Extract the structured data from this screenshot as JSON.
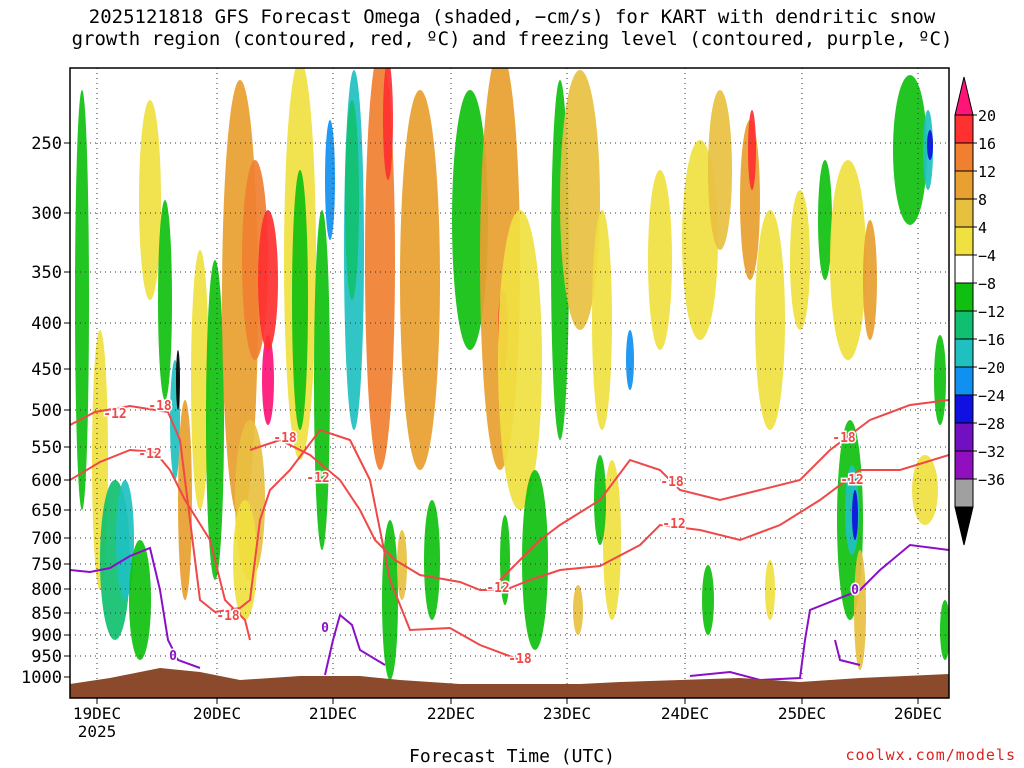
{
  "chart_data": {
    "type": "heatmap",
    "title_line1": "2025121818 GFS Forecast Omega (shaded, −cm/s) for KART with dendritic snow",
    "title_line2": "growth region (contoured, red, ºC) and freezing level (contoured, purple, ºC)",
    "xlabel": "Forecast Time (UTC)",
    "ylabel": "",
    "y_ticks": [
      250,
      300,
      350,
      400,
      450,
      500,
      550,
      600,
      650,
      700,
      750,
      800,
      850,
      900,
      950,
      1000
    ],
    "y_range": [
      200,
      1020
    ],
    "x_ticks": [
      "19DEC",
      "20DEC",
      "21DEC",
      "22DEC",
      "23DEC",
      "24DEC",
      "25DEC",
      "26DEC"
    ],
    "x_year": "2025",
    "colorbar": {
      "labels": [
        "20",
        "16",
        "12",
        "8",
        "4",
        "−4",
        "−8",
        "−12",
        "−16",
        "−20",
        "−24",
        "−28",
        "−32",
        "−36"
      ],
      "colors": [
        "#ff1478",
        "#ff3030",
        "#f08030",
        "#e8a030",
        "#e8c040",
        "#f0e040",
        "#ffffff",
        "#10c010",
        "#10c070",
        "#20c0c0",
        "#1090f0",
        "#1010e0",
        "#7010c0",
        "#9010c0",
        "#a0a0a0",
        "#000000"
      ]
    },
    "contour_labels": {
      "dgz_red": [
        "-18",
        "-12",
        "-18",
        "-12",
        "-18",
        "-12",
        "-18",
        "-12",
        "-18",
        "-12",
        "-18",
        "-12"
      ],
      "freezing_purple": [
        "0",
        "0",
        "0"
      ]
    },
    "surface_color": "#8b4a2b"
  },
  "credit": "coolwx.com/models"
}
